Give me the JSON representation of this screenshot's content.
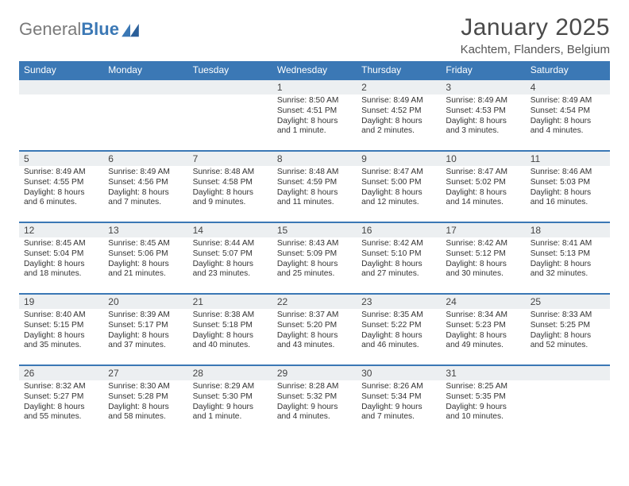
{
  "brand": {
    "part1": "General",
    "part2": "Blue"
  },
  "title": "January 2025",
  "location": "Kachtem, Flanders, Belgium",
  "colors": {
    "header_bg": "#3b78b5",
    "header_fg": "#ffffff",
    "daynum_bg": "#eceff1",
    "row_border": "#3b78b5",
    "text": "#333333",
    "title": "#4a4a4a",
    "brand_gray": "#7a7a7a",
    "brand_blue": "#3b78b5"
  },
  "typography": {
    "title_fontsize": 30,
    "location_fontsize": 15,
    "header_fontsize": 12,
    "daynum_fontsize": 12,
    "body_fontsize": 10.2
  },
  "columns": [
    "Sunday",
    "Monday",
    "Tuesday",
    "Wednesday",
    "Thursday",
    "Friday",
    "Saturday"
  ],
  "weeks": [
    [
      {
        "n": "",
        "lines": []
      },
      {
        "n": "",
        "lines": []
      },
      {
        "n": "",
        "lines": []
      },
      {
        "n": "1",
        "lines": [
          "Sunrise: 8:50 AM",
          "Sunset: 4:51 PM",
          "Daylight: 8 hours",
          "and 1 minute."
        ]
      },
      {
        "n": "2",
        "lines": [
          "Sunrise: 8:49 AM",
          "Sunset: 4:52 PM",
          "Daylight: 8 hours",
          "and 2 minutes."
        ]
      },
      {
        "n": "3",
        "lines": [
          "Sunrise: 8:49 AM",
          "Sunset: 4:53 PM",
          "Daylight: 8 hours",
          "and 3 minutes."
        ]
      },
      {
        "n": "4",
        "lines": [
          "Sunrise: 8:49 AM",
          "Sunset: 4:54 PM",
          "Daylight: 8 hours",
          "and 4 minutes."
        ]
      }
    ],
    [
      {
        "n": "5",
        "lines": [
          "Sunrise: 8:49 AM",
          "Sunset: 4:55 PM",
          "Daylight: 8 hours",
          "and 6 minutes."
        ]
      },
      {
        "n": "6",
        "lines": [
          "Sunrise: 8:49 AM",
          "Sunset: 4:56 PM",
          "Daylight: 8 hours",
          "and 7 minutes."
        ]
      },
      {
        "n": "7",
        "lines": [
          "Sunrise: 8:48 AM",
          "Sunset: 4:58 PM",
          "Daylight: 8 hours",
          "and 9 minutes."
        ]
      },
      {
        "n": "8",
        "lines": [
          "Sunrise: 8:48 AM",
          "Sunset: 4:59 PM",
          "Daylight: 8 hours",
          "and 11 minutes."
        ]
      },
      {
        "n": "9",
        "lines": [
          "Sunrise: 8:47 AM",
          "Sunset: 5:00 PM",
          "Daylight: 8 hours",
          "and 12 minutes."
        ]
      },
      {
        "n": "10",
        "lines": [
          "Sunrise: 8:47 AM",
          "Sunset: 5:02 PM",
          "Daylight: 8 hours",
          "and 14 minutes."
        ]
      },
      {
        "n": "11",
        "lines": [
          "Sunrise: 8:46 AM",
          "Sunset: 5:03 PM",
          "Daylight: 8 hours",
          "and 16 minutes."
        ]
      }
    ],
    [
      {
        "n": "12",
        "lines": [
          "Sunrise: 8:45 AM",
          "Sunset: 5:04 PM",
          "Daylight: 8 hours",
          "and 18 minutes."
        ]
      },
      {
        "n": "13",
        "lines": [
          "Sunrise: 8:45 AM",
          "Sunset: 5:06 PM",
          "Daylight: 8 hours",
          "and 21 minutes."
        ]
      },
      {
        "n": "14",
        "lines": [
          "Sunrise: 8:44 AM",
          "Sunset: 5:07 PM",
          "Daylight: 8 hours",
          "and 23 minutes."
        ]
      },
      {
        "n": "15",
        "lines": [
          "Sunrise: 8:43 AM",
          "Sunset: 5:09 PM",
          "Daylight: 8 hours",
          "and 25 minutes."
        ]
      },
      {
        "n": "16",
        "lines": [
          "Sunrise: 8:42 AM",
          "Sunset: 5:10 PM",
          "Daylight: 8 hours",
          "and 27 minutes."
        ]
      },
      {
        "n": "17",
        "lines": [
          "Sunrise: 8:42 AM",
          "Sunset: 5:12 PM",
          "Daylight: 8 hours",
          "and 30 minutes."
        ]
      },
      {
        "n": "18",
        "lines": [
          "Sunrise: 8:41 AM",
          "Sunset: 5:13 PM",
          "Daylight: 8 hours",
          "and 32 minutes."
        ]
      }
    ],
    [
      {
        "n": "19",
        "lines": [
          "Sunrise: 8:40 AM",
          "Sunset: 5:15 PM",
          "Daylight: 8 hours",
          "and 35 minutes."
        ]
      },
      {
        "n": "20",
        "lines": [
          "Sunrise: 8:39 AM",
          "Sunset: 5:17 PM",
          "Daylight: 8 hours",
          "and 37 minutes."
        ]
      },
      {
        "n": "21",
        "lines": [
          "Sunrise: 8:38 AM",
          "Sunset: 5:18 PM",
          "Daylight: 8 hours",
          "and 40 minutes."
        ]
      },
      {
        "n": "22",
        "lines": [
          "Sunrise: 8:37 AM",
          "Sunset: 5:20 PM",
          "Daylight: 8 hours",
          "and 43 minutes."
        ]
      },
      {
        "n": "23",
        "lines": [
          "Sunrise: 8:35 AM",
          "Sunset: 5:22 PM",
          "Daylight: 8 hours",
          "and 46 minutes."
        ]
      },
      {
        "n": "24",
        "lines": [
          "Sunrise: 8:34 AM",
          "Sunset: 5:23 PM",
          "Daylight: 8 hours",
          "and 49 minutes."
        ]
      },
      {
        "n": "25",
        "lines": [
          "Sunrise: 8:33 AM",
          "Sunset: 5:25 PM",
          "Daylight: 8 hours",
          "and 52 minutes."
        ]
      }
    ],
    [
      {
        "n": "26",
        "lines": [
          "Sunrise: 8:32 AM",
          "Sunset: 5:27 PM",
          "Daylight: 8 hours",
          "and 55 minutes."
        ]
      },
      {
        "n": "27",
        "lines": [
          "Sunrise: 8:30 AM",
          "Sunset: 5:28 PM",
          "Daylight: 8 hours",
          "and 58 minutes."
        ]
      },
      {
        "n": "28",
        "lines": [
          "Sunrise: 8:29 AM",
          "Sunset: 5:30 PM",
          "Daylight: 9 hours",
          "and 1 minute."
        ]
      },
      {
        "n": "29",
        "lines": [
          "Sunrise: 8:28 AM",
          "Sunset: 5:32 PM",
          "Daylight: 9 hours",
          "and 4 minutes."
        ]
      },
      {
        "n": "30",
        "lines": [
          "Sunrise: 8:26 AM",
          "Sunset: 5:34 PM",
          "Daylight: 9 hours",
          "and 7 minutes."
        ]
      },
      {
        "n": "31",
        "lines": [
          "Sunrise: 8:25 AM",
          "Sunset: 5:35 PM",
          "Daylight: 9 hours",
          "and 10 minutes."
        ]
      },
      {
        "n": "",
        "lines": []
      }
    ]
  ]
}
